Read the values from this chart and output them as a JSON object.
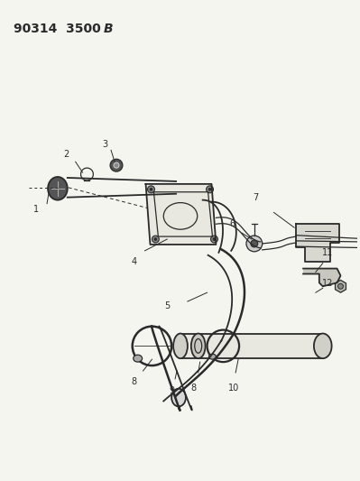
{
  "title": "90314  3500",
  "title_bold": "B",
  "bg_color": "#f5f5f0",
  "line_color": "#2a2a2a",
  "label_color": "#2a2a2a",
  "figsize": [
    3.99,
    5.33
  ],
  "dpi": 100
}
